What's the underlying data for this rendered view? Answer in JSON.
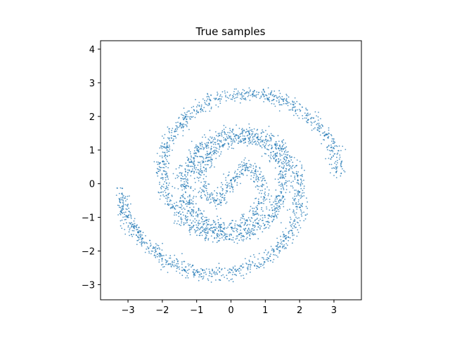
{
  "chart_data": {
    "type": "scatter",
    "title": "True samples",
    "xlabel": "",
    "ylabel": "",
    "xlim": [
      -3.8,
      3.8
    ],
    "ylim": [
      -3.45,
      4.25
    ],
    "xticks": [
      -3,
      -2,
      -1,
      0,
      1,
      2,
      3
    ],
    "xtick_labels": [
      "−3",
      "−2",
      "−1",
      "0",
      "1",
      "2",
      "3"
    ],
    "yticks": [
      -3,
      -2,
      -1,
      0,
      1,
      2,
      3,
      4
    ],
    "ytick_labels": [
      "−3",
      "−2",
      "−1",
      "0",
      "1",
      "2",
      "3",
      "4"
    ],
    "grid": false,
    "legend": "none",
    "marker_color": "#1f77b4",
    "series": [
      {
        "description_points": "two-arm spiral (double swiss roll) of noisy samples",
        "arm_a_centerline": [
          [
            0.0,
            0.0
          ],
          [
            0.35,
            0.55
          ],
          [
            0.8,
            0.3
          ],
          [
            0.95,
            -0.4
          ],
          [
            0.6,
            -0.95
          ],
          [
            0.0,
            -1.3
          ],
          [
            -0.8,
            -1.2
          ],
          [
            -1.3,
            -0.6
          ],
          [
            -1.4,
            0.2
          ],
          [
            -1.0,
            1.0
          ],
          [
            -0.2,
            1.5
          ],
          [
            0.7,
            1.5
          ],
          [
            1.5,
            1.1
          ],
          [
            1.9,
            0.4
          ],
          [
            2.05,
            -0.5
          ],
          [
            1.8,
            -1.4
          ],
          [
            1.1,
            -2.2
          ],
          [
            0.2,
            -2.6
          ],
          [
            -0.9,
            -2.7
          ],
          [
            -1.9,
            -2.3
          ],
          [
            -2.6,
            -1.7
          ],
          [
            -3.1,
            -0.9
          ],
          [
            -3.2,
            -0.2
          ]
        ],
        "arm_b_centerline": [
          [
            0.0,
            0.0
          ],
          [
            -0.35,
            -0.55
          ],
          [
            -0.8,
            -0.3
          ],
          [
            -0.95,
            0.35
          ],
          [
            -0.55,
            0.95
          ],
          [
            0.1,
            1.35
          ],
          [
            0.9,
            1.25
          ],
          [
            1.45,
            0.6
          ],
          [
            1.55,
            -0.2
          ],
          [
            1.15,
            -1.0
          ],
          [
            0.4,
            -1.5
          ],
          [
            -0.5,
            -1.55
          ],
          [
            -1.3,
            -1.2
          ],
          [
            -1.9,
            -0.45
          ],
          [
            -2.0,
            0.5
          ],
          [
            -1.8,
            1.35
          ],
          [
            -1.2,
            2.1
          ],
          [
            -0.4,
            2.55
          ],
          [
            0.6,
            2.7
          ],
          [
            1.6,
            2.45
          ],
          [
            2.4,
            1.9
          ],
          [
            2.95,
            1.15
          ],
          [
            3.2,
            0.3
          ]
        ]
      }
    ]
  }
}
